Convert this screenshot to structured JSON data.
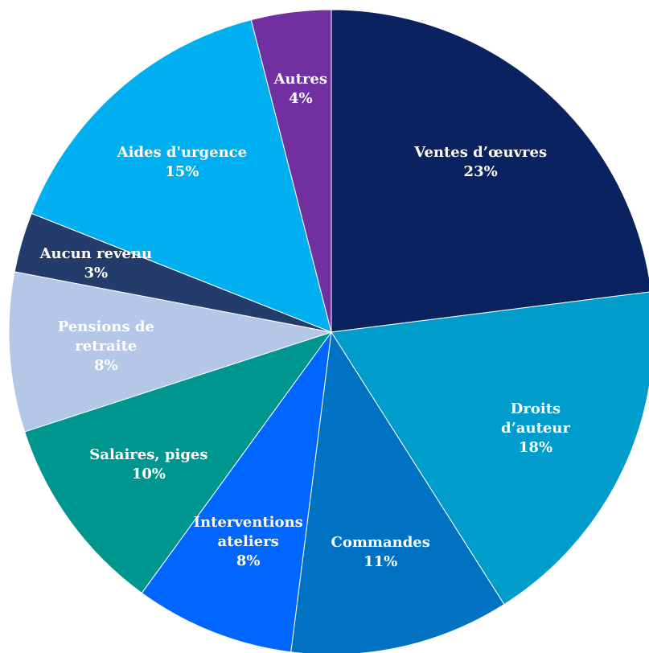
{
  "chart_data": {
    "type": "pie",
    "categories": [
      "Ventes d’œuvres",
      "Droits d’auteur",
      "Commandes",
      "Interventions\nateliers",
      "Salaires, piges",
      "Pensions de\nretraite",
      "Aucun revenu",
      "Aides d'urgence",
      "Autres"
    ],
    "values": [
      23,
      18,
      11,
      8,
      10,
      8,
      3,
      15,
      4
    ],
    "value_labels": [
      "23%",
      "18%",
      "11%",
      "8%",
      "10%",
      "8%",
      "3%",
      "15%",
      "4%"
    ],
    "colors": [
      "#0b2260",
      "#009dcc",
      "#0072c1",
      "#0066ff",
      "#009690",
      "#b4c7e7",
      "#233c6b",
      "#00aff0",
      "#7030a0"
    ]
  }
}
